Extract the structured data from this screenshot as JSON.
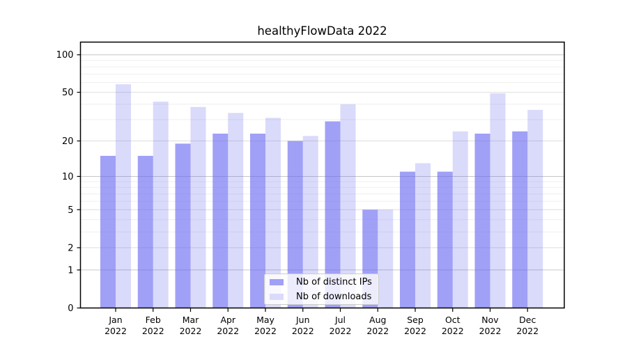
{
  "chart_data": {
    "type": "bar",
    "title": "healthyFlowData 2022",
    "x_categories": [
      "Jan",
      "Feb",
      "Mar",
      "Apr",
      "May",
      "Jun",
      "Jul",
      "Aug",
      "Sep",
      "Oct",
      "Nov",
      "Dec"
    ],
    "x_year_label": "2022",
    "series": [
      {
        "name": "Nb of distinct IPs",
        "color": "#6666f0",
        "fill_opacity": 0.62,
        "values": [
          15,
          15,
          19,
          23,
          23,
          20,
          29,
          5,
          11,
          11,
          23,
          24
        ]
      },
      {
        "name": "Nb of downloads",
        "color": "#6666f0",
        "fill_opacity": 0.24,
        "values": [
          58,
          42,
          38,
          34,
          31,
          22,
          40,
          5,
          13,
          24,
          49,
          36
        ]
      }
    ],
    "y_scale": "log10(1+y)",
    "y_ticks": [
      0,
      1,
      2,
      5,
      10,
      20,
      50,
      100
    ],
    "y_decade_ticks": [
      1,
      10,
      100
    ],
    "y_minor_gridlines": [
      3,
      4,
      6,
      7,
      8,
      9,
      30,
      40,
      60,
      70,
      80,
      90
    ],
    "y_range_top_value": 125,
    "grid": true,
    "legend_position": "lower center",
    "colors": {
      "axis": "#000000",
      "major_gridline": "#c6c6c6",
      "mid_gridline": "#dddddd",
      "minor_gridline": "#efefef",
      "text": "#000000",
      "legend_border": "#cccccc"
    }
  }
}
